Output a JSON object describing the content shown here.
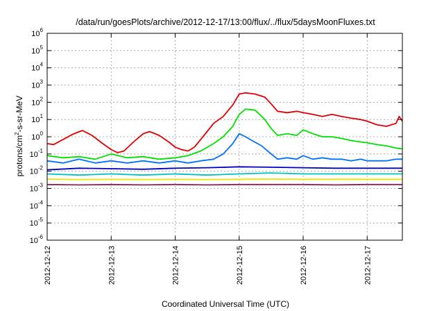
{
  "chart_data": {
    "type": "line",
    "title": "/data/run/goesPlots/archive/2012-12-17/13:00/flux/../flux/5daysMoonFluxes.txt",
    "xlabel": "Coordinated Universal Time (UTC)",
    "ylabel": "protons/cm2-s-sr-MeV",
    "ylabel_parts": {
      "main": "protons/cm",
      "sup": "2",
      "rest": "-s-sr-MeV"
    },
    "x_ticks": [
      "2012-12-12",
      "2012-12-13",
      "2012-12-14",
      "2012-12-15",
      "2012-12-16",
      "2012-12-17"
    ],
    "x_tick_days": [
      0,
      1,
      2,
      3,
      4,
      5
    ],
    "xlim_days": [
      0,
      5.55
    ],
    "yscale": "log",
    "ylim_exp": [
      -6,
      6
    ],
    "y_tick_exps": [
      "-6",
      "-5",
      "-4",
      "-3",
      "-2",
      "-1",
      "0",
      "1",
      "2",
      "3",
      "4",
      "5",
      "6"
    ],
    "y_tick_base": "10",
    "grid": true,
    "series": [
      {
        "color": "#e00000",
        "x": [
          0,
          0.1,
          0.25,
          0.4,
          0.55,
          0.7,
          0.85,
          1.0,
          1.1,
          1.2,
          1.35,
          1.5,
          1.6,
          1.75,
          1.9,
          2.0,
          2.1,
          2.2,
          2.3,
          2.4,
          2.5,
          2.6,
          2.75,
          2.9,
          3.0,
          3.1,
          3.25,
          3.4,
          3.5,
          3.6,
          3.75,
          3.9,
          4.0,
          4.15,
          4.3,
          4.45,
          4.6,
          4.75,
          4.9,
          5.0,
          5.15,
          5.3,
          5.45,
          5.5,
          5.55
        ],
        "y": [
          0.4,
          0.35,
          0.7,
          1.4,
          2.3,
          1.2,
          0.45,
          0.18,
          0.12,
          0.15,
          0.5,
          1.5,
          2.0,
          1.2,
          0.5,
          0.25,
          0.18,
          0.15,
          0.25,
          0.7,
          2.0,
          6.0,
          15,
          70,
          300,
          350,
          300,
          200,
          80,
          30,
          25,
          30,
          25,
          20,
          15,
          20,
          15,
          12,
          10,
          8,
          5,
          4,
          6,
          15,
          8
        ]
      },
      {
        "color": "#00e000",
        "x": [
          0,
          0.25,
          0.5,
          0.75,
          1.0,
          1.25,
          1.5,
          1.75,
          2.0,
          2.2,
          2.4,
          2.6,
          2.75,
          2.9,
          3.0,
          3.1,
          3.25,
          3.4,
          3.5,
          3.6,
          3.75,
          3.9,
          4.0,
          4.15,
          4.3,
          4.45,
          4.6,
          4.75,
          4.9,
          5.0,
          5.15,
          5.3,
          5.45,
          5.55
        ],
        "y": [
          0.08,
          0.06,
          0.07,
          0.05,
          0.1,
          0.06,
          0.07,
          0.05,
          0.06,
          0.08,
          0.15,
          0.4,
          1.0,
          4.0,
          20,
          40,
          35,
          10,
          3,
          1.2,
          1.5,
          1.2,
          2.5,
          1.5,
          1.0,
          1.0,
          0.8,
          0.6,
          0.5,
          0.45,
          0.35,
          0.3,
          0.22,
          0.2
        ]
      },
      {
        "color": "#0070ff",
        "x": [
          0,
          0.25,
          0.5,
          0.75,
          1.0,
          1.25,
          1.5,
          1.75,
          2.0,
          2.2,
          2.4,
          2.6,
          2.75,
          2.9,
          3.0,
          3.1,
          3.2,
          3.35,
          3.5,
          3.6,
          3.75,
          3.9,
          4.0,
          4.15,
          4.3,
          4.45,
          4.6,
          4.75,
          4.9,
          5.0,
          5.15,
          5.3,
          5.45,
          5.55
        ],
        "y": [
          0.04,
          0.03,
          0.05,
          0.03,
          0.04,
          0.03,
          0.04,
          0.03,
          0.04,
          0.03,
          0.04,
          0.05,
          0.1,
          0.4,
          1.5,
          1.0,
          0.6,
          0.3,
          0.1,
          0.05,
          0.06,
          0.05,
          0.08,
          0.05,
          0.06,
          0.05,
          0.05,
          0.04,
          0.05,
          0.04,
          0.04,
          0.04,
          0.05,
          0.05
        ]
      },
      {
        "color": "#0000c0",
        "x": [
          0,
          0.5,
          1.0,
          1.5,
          2.0,
          2.5,
          3.0,
          3.5,
          4.0,
          4.5,
          5.0,
          5.55
        ],
        "y": [
          0.012,
          0.015,
          0.014,
          0.013,
          0.015,
          0.016,
          0.018,
          0.017,
          0.016,
          0.015,
          0.015,
          0.015
        ]
      },
      {
        "color": "#00c0c0",
        "x": [
          0,
          0.5,
          1.0,
          1.5,
          2.0,
          2.5,
          3.0,
          3.5,
          4.0,
          4.5,
          5.0,
          5.55
        ],
        "y": [
          0.007,
          0.006,
          0.007,
          0.006,
          0.007,
          0.006,
          0.007,
          0.008,
          0.007,
          0.007,
          0.007,
          0.007
        ]
      },
      {
        "color": "#e8e800",
        "x": [
          0,
          0.5,
          1.0,
          1.5,
          2.0,
          2.5,
          3.0,
          3.5,
          4.0,
          4.5,
          5.0,
          5.55
        ],
        "y": [
          0.0035,
          0.0033,
          0.0034,
          0.0033,
          0.0034,
          0.0033,
          0.0034,
          0.0035,
          0.0034,
          0.0034,
          0.0034,
          0.0034
        ]
      },
      {
        "color": "#8b2252",
        "x": [
          0,
          0.5,
          1.0,
          1.5,
          2.0,
          2.5,
          3.0,
          3.5,
          4.0,
          4.5,
          5.0,
          5.55
        ],
        "y": [
          0.0017,
          0.0016,
          0.0017,
          0.0016,
          0.0017,
          0.0016,
          0.0017,
          0.0017,
          0.0017,
          0.0016,
          0.0017,
          0.0017
        ]
      }
    ]
  }
}
